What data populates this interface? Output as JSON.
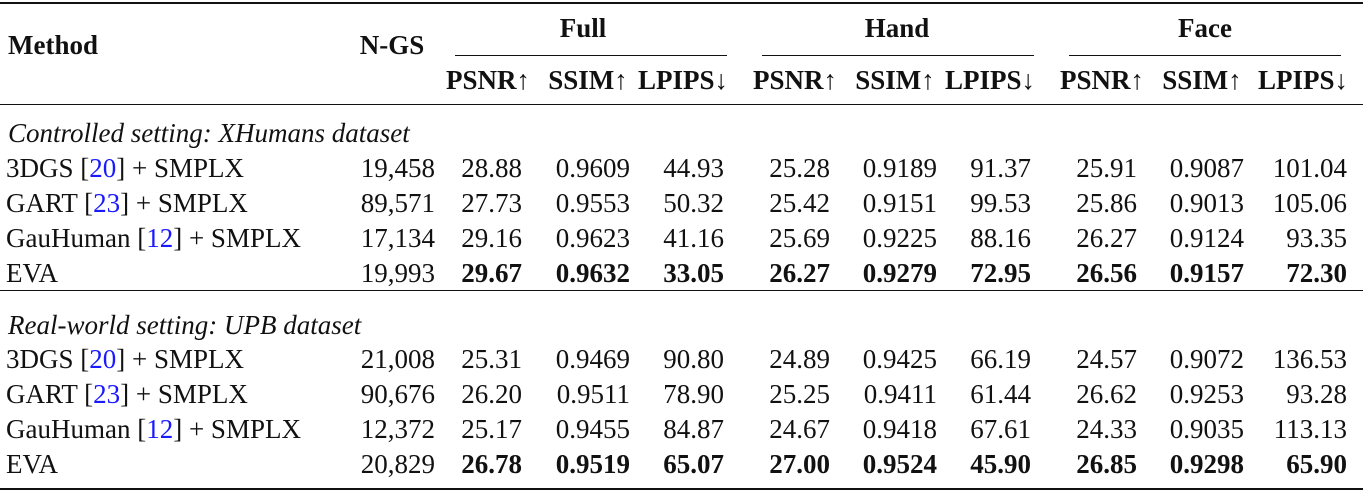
{
  "header": {
    "method": "Method",
    "ngs": "N-GS",
    "groups": [
      {
        "name": "Full",
        "metrics": [
          "PSNR↑",
          "SSIM↑",
          "LPIPS↓"
        ]
      },
      {
        "name": "Hand",
        "metrics": [
          "PSNR↑",
          "SSIM↑",
          "LPIPS↓"
        ]
      },
      {
        "name": "Face",
        "metrics": [
          "PSNR↑",
          "SSIM↑",
          "LPIPS↓"
        ]
      }
    ]
  },
  "sections": [
    {
      "title": "Controlled setting: XHumans dataset",
      "rows": [
        {
          "method": [
            "3DGS [",
            "20",
            "] + SMPLX"
          ],
          "ngs": "19,458",
          "values": [
            "28.88",
            "0.9609",
            "44.93",
            "25.28",
            "0.9189",
            "91.37",
            "25.91",
            "0.9087",
            "101.04"
          ],
          "bold": false
        },
        {
          "method": [
            "GART [",
            "23",
            "] + SMPLX"
          ],
          "ngs": "89,571",
          "values": [
            "27.73",
            "0.9553",
            "50.32",
            "25.42",
            "0.9151",
            "99.53",
            "25.86",
            "0.9013",
            "105.06"
          ],
          "bold": false
        },
        {
          "method": [
            "GauHuman [",
            "12",
            "] + SMPLX"
          ],
          "ngs": "17,134",
          "values": [
            "29.16",
            "0.9623",
            "41.16",
            "25.69",
            "0.9225",
            "88.16",
            "26.27",
            "0.9124",
            "93.35"
          ],
          "bold": false
        },
        {
          "method": [
            "EVA"
          ],
          "ngs": "19,993",
          "values": [
            "29.67",
            "0.9632",
            "33.05",
            "26.27",
            "0.9279",
            "72.95",
            "26.56",
            "0.9157",
            "72.30"
          ],
          "bold": true
        }
      ]
    },
    {
      "title": "Real-world setting: UPB dataset",
      "rows": [
        {
          "method": [
            "3DGS [",
            "20",
            "] + SMPLX"
          ],
          "ngs": "21,008",
          "values": [
            "25.31",
            "0.9469",
            "90.80",
            "24.89",
            "0.9425",
            "66.19",
            "24.57",
            "0.9072",
            "136.53"
          ],
          "bold": false
        },
        {
          "method": [
            "GART [",
            "23",
            "] + SMPLX"
          ],
          "ngs": "90,676",
          "values": [
            "26.20",
            "0.9511",
            "78.90",
            "25.25",
            "0.9411",
            "61.44",
            "26.62",
            "0.9253",
            "93.28"
          ],
          "bold": false
        },
        {
          "method": [
            "GauHuman [",
            "12",
            "] + SMPLX"
          ],
          "ngs": "12,372",
          "values": [
            "25.17",
            "0.9455",
            "84.87",
            "24.67",
            "0.9418",
            "67.61",
            "24.33",
            "0.9035",
            "113.13"
          ],
          "bold": false
        },
        {
          "method": [
            "EVA"
          ],
          "ngs": "20,829",
          "values": [
            "26.78",
            "0.9519",
            "65.07",
            "27.00",
            "0.9524",
            "45.90",
            "26.85",
            "0.9298",
            "65.90"
          ],
          "bold": true
        }
      ]
    }
  ]
}
